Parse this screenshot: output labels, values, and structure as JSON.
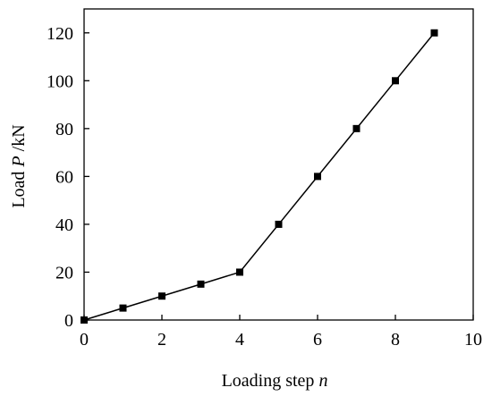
{
  "chart_data": {
    "type": "line",
    "xlabel": [
      "Loading step ",
      "n"
    ],
    "ylabel": [
      "Load ",
      "P",
      " /kN"
    ],
    "x": [
      0,
      1,
      2,
      3,
      4,
      5,
      6,
      7,
      8,
      9
    ],
    "series": [
      {
        "color": "#000000",
        "values": [
          0,
          5,
          10,
          15,
          20,
          40,
          60,
          80,
          100,
          120
        ]
      }
    ],
    "xlim": [
      0,
      10
    ],
    "ylim": [
      0,
      130
    ],
    "xticks": [
      0,
      2,
      4,
      6,
      8,
      10
    ],
    "yticks": [
      0,
      20,
      40,
      60,
      80,
      100,
      120
    ],
    "grid": false
  }
}
